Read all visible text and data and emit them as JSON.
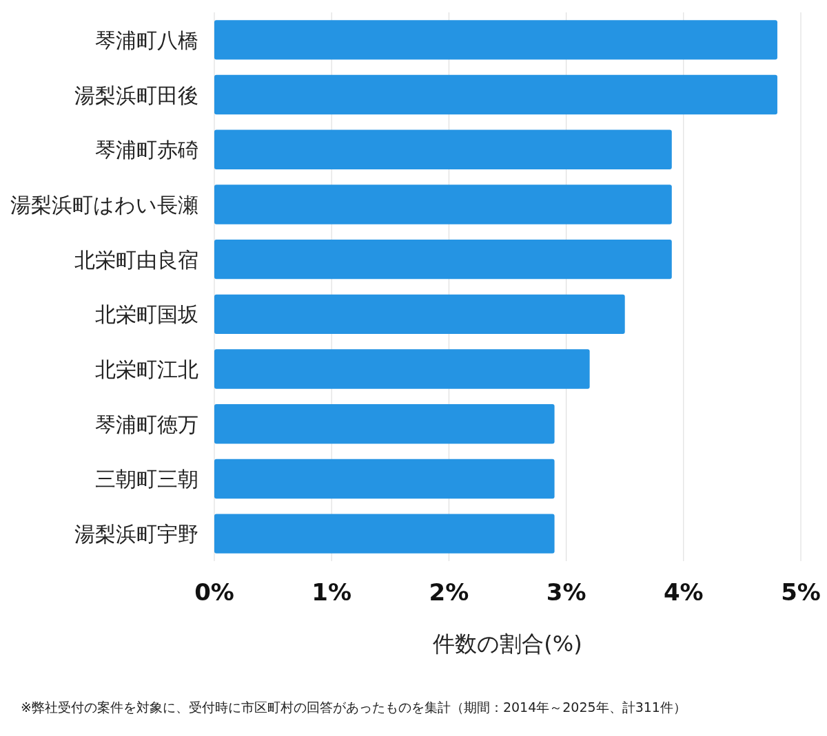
{
  "chart_data": {
    "type": "bar",
    "orientation": "horizontal",
    "categories": [
      "琴浦町八橋",
      "湯梨浜町田後",
      "琴浦町赤碕",
      "湯梨浜町はわい長瀬",
      "北栄町由良宿",
      "北栄町国坂",
      "北栄町江北",
      "琴浦町徳万",
      "三朝町三朝",
      "湯梨浜町宇野"
    ],
    "values": [
      4.8,
      4.8,
      3.9,
      3.9,
      3.9,
      3.5,
      3.2,
      2.9,
      2.9,
      2.9
    ],
    "color": "#2594e3",
    "xlim": [
      0,
      5
    ],
    "xticks": [
      {
        "value": 0,
        "label": "0%"
      },
      {
        "value": 1,
        "label": "1%"
      },
      {
        "value": 2,
        "label": "2%"
      },
      {
        "value": 3,
        "label": "3%"
      },
      {
        "value": 4,
        "label": "4%"
      },
      {
        "value": 5,
        "label": "5%"
      }
    ],
    "xlabel": "件数の割合(%)",
    "grid": "x",
    "annotations": [
      "※弊社受付の案件を対象に、受付時に市区町村の回答があったものを集計（期間：2014年～2025年、計311件）"
    ]
  }
}
